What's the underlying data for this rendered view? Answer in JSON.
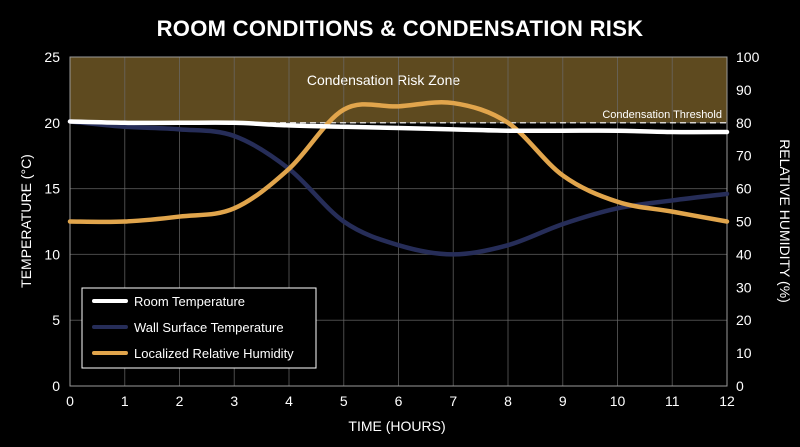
{
  "chart_data": {
    "type": "line",
    "title": "ROOM CONDITIONS & CONDENSATION RISK",
    "xlabel": "TIME (HOURS)",
    "ylabel_left": "TEMPERATURE (°C)",
    "ylabel_right": "RELATIVE HUMIDITY (%)",
    "xlim": [
      0,
      12
    ],
    "ylim_left": [
      0,
      25
    ],
    "ylim_right": [
      0,
      100
    ],
    "x_ticks": [
      "0",
      "1",
      "2",
      "3",
      "4",
      "5",
      "6",
      "7",
      "8",
      "9",
      "10",
      "11",
      "12"
    ],
    "y_left_ticks": [
      "0",
      "5",
      "10",
      "15",
      "20",
      "25"
    ],
    "y_right_ticks": [
      "0",
      "10",
      "20",
      "30",
      "40",
      "50",
      "60",
      "70",
      "80",
      "90",
      "100"
    ],
    "grid": true,
    "legend_position": "bottom-left",
    "risk_zone": {
      "label": "Condensation Risk Zone",
      "rh_from": 80,
      "rh_to": 100,
      "color": "#5e4a1f"
    },
    "threshold": {
      "label": "Condensation Threshold",
      "rh": 80
    },
    "series": [
      {
        "name": "Room Temperature",
        "axis": "left",
        "color": "#ffffff",
        "x": [
          0,
          1,
          2,
          3,
          4,
          5,
          6,
          7,
          8,
          9,
          10,
          11,
          12
        ],
        "values": [
          20.1,
          20.0,
          20.0,
          20.0,
          19.8,
          19.7,
          19.6,
          19.5,
          19.4,
          19.4,
          19.4,
          19.3,
          19.3
        ]
      },
      {
        "name": "Wall Surface Temperature",
        "axis": "left",
        "color": "#262d58",
        "x": [
          0,
          1,
          2,
          3,
          4,
          5,
          6,
          7,
          8,
          9,
          10,
          11,
          12
        ],
        "values": [
          20.1,
          19.7,
          19.5,
          19.0,
          16.5,
          12.5,
          10.7,
          10.0,
          10.7,
          12.3,
          13.5,
          14.1,
          14.6
        ]
      },
      {
        "name": "Localized Relative Humidity",
        "axis": "right",
        "color": "#e1a54c",
        "x": [
          0,
          1,
          2,
          3,
          4,
          5,
          6,
          7,
          8,
          9,
          10,
          11,
          12
        ],
        "values": [
          50,
          50,
          51.5,
          54,
          66,
          84,
          85,
          86,
          80,
          64,
          56,
          53,
          50
        ]
      }
    ]
  }
}
